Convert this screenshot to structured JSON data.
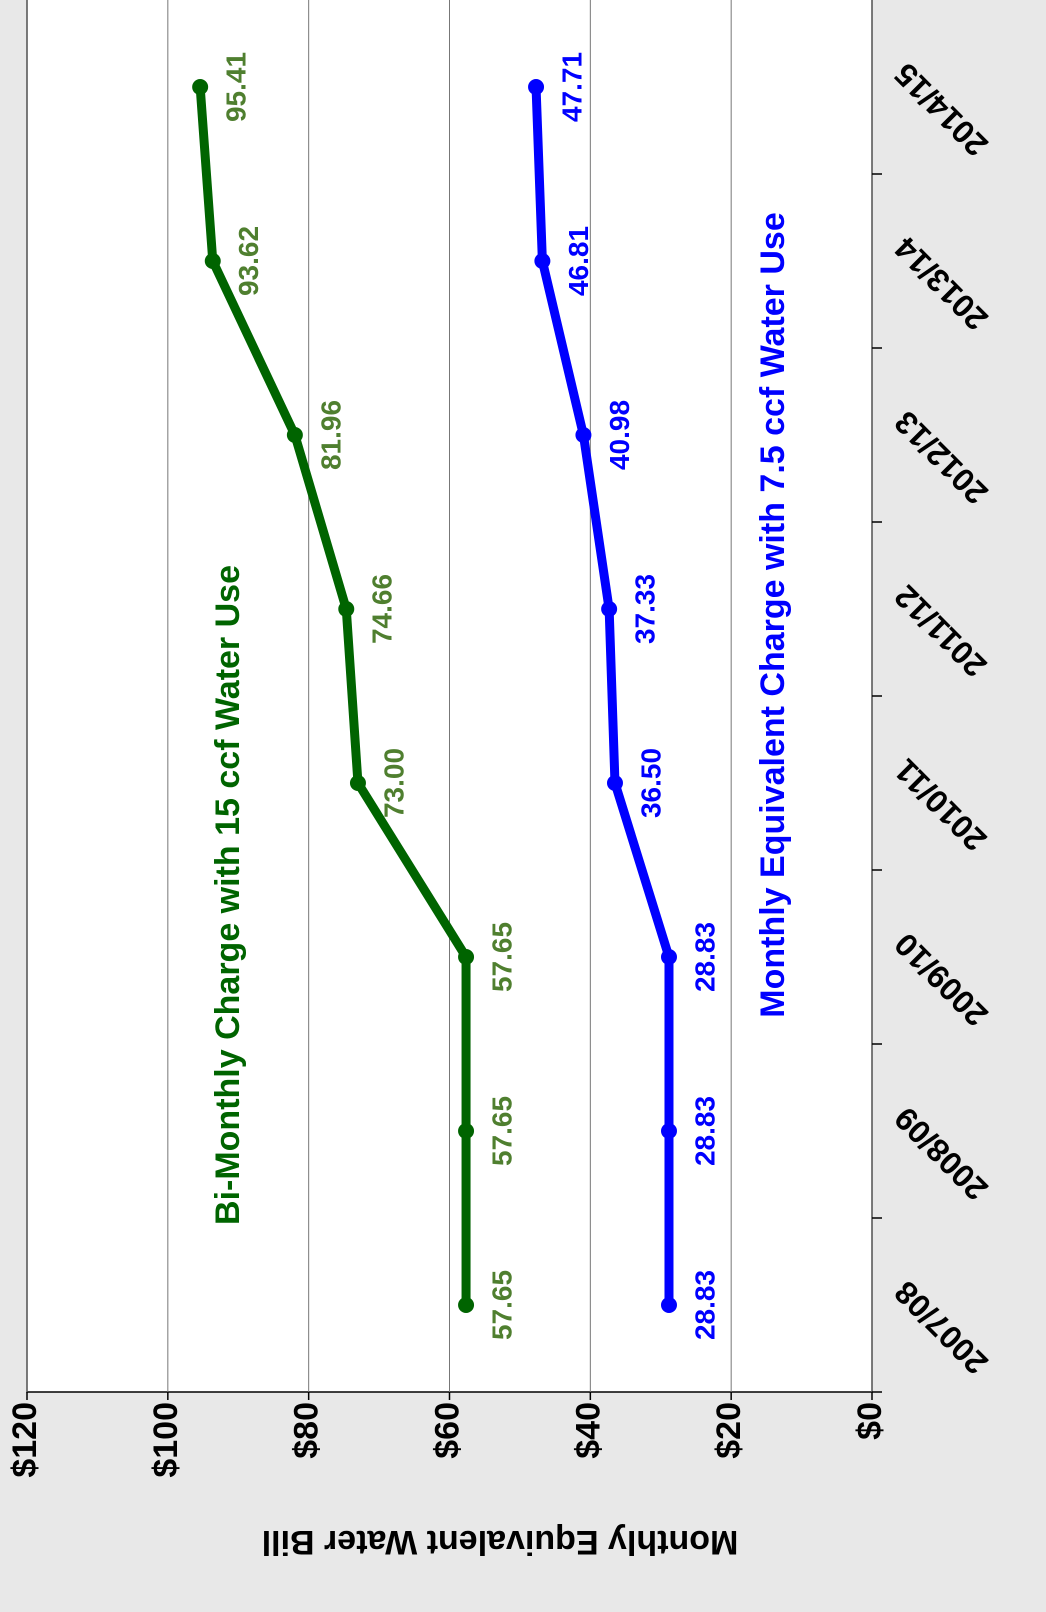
{
  "chart_data": {
    "type": "line",
    "categories": [
      "2007/08",
      "2008/09",
      "2009/10",
      "2010/11",
      "2011/12",
      "2012/13",
      "2013/14",
      "2014/15"
    ],
    "series": [
      {
        "name": "Bi-Monthly Charge with 15 ccf Water Use",
        "color": "#006400",
        "label_color": "#4f7f2f",
        "values": [
          57.65,
          57.65,
          57.65,
          73,
          74.66,
          81.96,
          93.62,
          95.41
        ],
        "value_labels": [
          "57.65",
          "57.65",
          "57.65",
          "73.00",
          "74.66",
          "81.96",
          "93.62",
          "95.41"
        ]
      },
      {
        "name": "Monthly Equivalent Charge with 7.5 ccf Water Use",
        "color": "#0000ff",
        "label_color": "#0000ff",
        "values": [
          28.83,
          28.83,
          28.83,
          36.5,
          37.33,
          40.98,
          46.81,
          47.71
        ],
        "value_labels": [
          "28.83",
          "28.83",
          "28.83",
          "36.50",
          "37.33",
          "40.98",
          "46.81",
          "47.71"
        ]
      }
    ],
    "y_label": "Monthly Equivalent Water Bill",
    "ylim": [
      0,
      120
    ],
    "yticks": [
      {
        "value": 0,
        "label": "$0"
      },
      {
        "value": 20,
        "label": "$20"
      },
      {
        "value": 40,
        "label": "$40"
      },
      {
        "value": 60,
        "label": "$60"
      },
      {
        "value": 80,
        "label": "$80"
      },
      {
        "value": 100,
        "label": "$100"
      },
      {
        "value": 120,
        "label": "$120"
      }
    ],
    "grid": true
  }
}
